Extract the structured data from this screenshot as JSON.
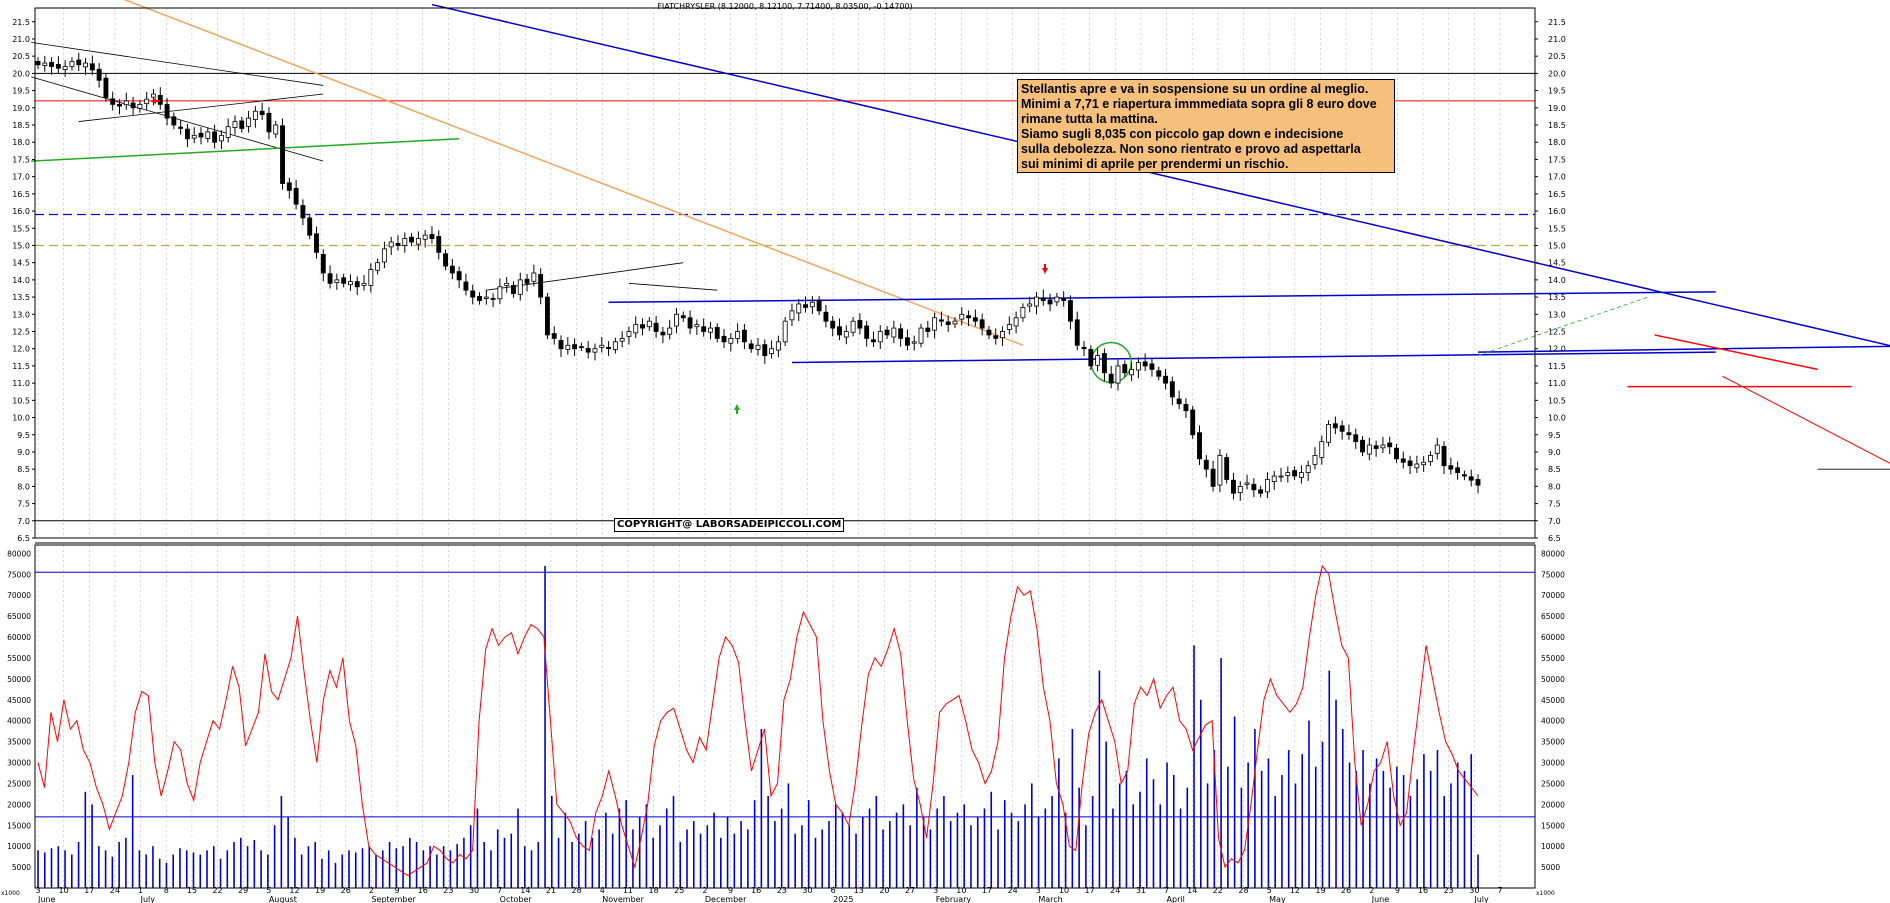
{
  "chart_title": "FIATCHRYSLER (8.12000, 8.12100, 7.71400, 8.03500, -0.14700)",
  "annotation": {
    "lines": [
      "Stellantis apre e va in sospensione su un ordine al meglio.",
      "Minimi a 7,71 e riapertura immmediata sopra gli 8 euro dove",
      "rimane tutta la mattina.",
      "Siamo sugli 8,035 con piccolo gap down e indecisione",
      "sulla debolezza. Non sono rientrato e provo ad aspettarla",
      "sui minimi di aprile per prendermi un rischio."
    ]
  },
  "copyright": "COPYRIGHT@ LABORSADEIPICCOLI.COM",
  "colors": {
    "candle_up": "#ffffff",
    "candle_down": "#000000",
    "volume": "#0000cc",
    "volume_avg": "#ff0000",
    "trend_blue": "#0000cc",
    "trend_orange": "#f4a460",
    "trend_green": "#22aa22",
    "level_red": "#ff0000",
    "level_dash_blue": "#0000cc",
    "level_dash_olive": "#b0b040"
  },
  "chart_data": [
    {
      "type": "candlestick",
      "price_ticks": [
        "7.0",
        "7.5",
        "8.0",
        "8.5",
        "9.0",
        "9.5",
        "10.0",
        "10.5",
        "11.0",
        "11.5",
        "12.0",
        "12.5",
        "13.0",
        "13.5",
        "14.0",
        "14.5",
        "15.0",
        "15.5",
        "16.0",
        "16.5",
        "17.0",
        "17.5",
        "18.0",
        "18.5",
        "19.0",
        "19.5",
        "20.0",
        "20.5",
        "21.0",
        "21.5"
      ],
      "extra_tick": "6.5",
      "ylim": [
        6.5,
        21.9
      ],
      "horizontal_levels": [
        {
          "value": 20.0,
          "style": "solid",
          "color": "#000000"
        },
        {
          "value": 19.2,
          "style": "solid",
          "color": "#ff0000"
        },
        {
          "value": 15.9,
          "style": "dashed",
          "color": "#0000cc"
        },
        {
          "value": 15.0,
          "style": "dashed",
          "color": "#b0b040"
        },
        {
          "value": 7.0,
          "style": "solid",
          "color": "#000000"
        }
      ],
      "last_close": 8.035,
      "last_high": 8.121,
      "last_low": 7.714,
      "last_open": 8.12,
      "change": -0.147,
      "x_day_labels": [
        "3",
        "10",
        "17",
        "24",
        "1",
        "8",
        "15",
        "22",
        "29",
        "5",
        "12",
        "19",
        "26",
        "2",
        "9",
        "16",
        "23",
        "30",
        "7",
        "14",
        "21",
        "28",
        "4",
        "11",
        "18",
        "25",
        "2",
        "9",
        "16",
        "23",
        "30",
        "6",
        "13",
        "20",
        "27",
        "3",
        "10",
        "17",
        "24",
        "3",
        "10",
        "17",
        "24",
        "31",
        "7",
        "14",
        "22",
        "28",
        "5",
        "12",
        "19",
        "26",
        "2",
        "9",
        "16",
        "23",
        "30",
        "7"
      ],
      "x_month_labels": [
        "June",
        "July",
        "August",
        "September",
        "October",
        "November",
        "December",
        "2025",
        "February",
        "March",
        "April",
        "May",
        "June",
        "July"
      ],
      "close_series": [
        20.25,
        20.3,
        20.2,
        20.15,
        20.2,
        20.35,
        20.25,
        20.3,
        20.1,
        19.8,
        19.3,
        19.1,
        19.05,
        19.2,
        19.0,
        19.1,
        19.25,
        19.4,
        19.1,
        18.7,
        18.5,
        18.4,
        18.1,
        18.2,
        18.15,
        18.3,
        18.0,
        18.2,
        18.45,
        18.6,
        18.4,
        18.7,
        18.9,
        18.8,
        18.3,
        18.5,
        16.8,
        16.6,
        16.2,
        15.8,
        15.3,
        14.8,
        14.2,
        13.9,
        14.0,
        13.9,
        13.95,
        13.8,
        13.9,
        14.3,
        14.5,
        14.9,
        15.1,
        15.0,
        15.2,
        15.1,
        15.2,
        15.3,
        15.2,
        14.8,
        14.4,
        14.2,
        14.0,
        13.7,
        13.5,
        13.4,
        13.5,
        13.45,
        13.8,
        13.9,
        13.6,
        14.0,
        13.9,
        14.2,
        13.5,
        12.4,
        12.3,
        12.0,
        12.1,
        12.0,
        12.05,
        11.9,
        12.0,
        12.1,
        12.0,
        12.2,
        12.3,
        12.5,
        12.7,
        12.6,
        12.8,
        12.5,
        12.4,
        12.6,
        13.0,
        12.9,
        12.6,
        12.7,
        12.5,
        12.6,
        12.3,
        12.2,
        12.3,
        12.5,
        12.2,
        12.0,
        12.1,
        11.8,
        12.0,
        12.2,
        12.8,
        13.1,
        13.3,
        13.2,
        13.35,
        13.1,
        12.8,
        12.6,
        12.4,
        12.5,
        12.8,
        12.6,
        12.3,
        12.2,
        12.5,
        12.4,
        12.6,
        12.3,
        12.1,
        12.2,
        12.6,
        12.5,
        12.9,
        12.8,
        12.7,
        12.8,
        13.0,
        12.9,
        12.8,
        12.6,
        12.4,
        12.3,
        12.5,
        12.7,
        12.9,
        13.2,
        13.3,
        13.5,
        13.4,
        13.3,
        13.5,
        13.4,
        12.8,
        12.1,
        12.0,
        11.5,
        11.8,
        11.3,
        11.0,
        11.5,
        11.3,
        11.4,
        11.6,
        11.5,
        11.4,
        11.2,
        11.0,
        10.6,
        10.4,
        10.2,
        9.5,
        8.8,
        8.5,
        8.0,
        8.9,
        8.2,
        7.8,
        8.0,
        8.1,
        7.9,
        7.8,
        8.2,
        8.3,
        8.3,
        8.4,
        8.3,
        8.4,
        8.6,
        8.9,
        9.3,
        9.8,
        9.7,
        9.6,
        9.5,
        9.3,
        9.0,
        9.2,
        9.1,
        9.2,
        9.15,
        8.8,
        8.7,
        8.6,
        8.65,
        8.7,
        8.9,
        9.2,
        8.6,
        8.5,
        8.4,
        8.3,
        8.18,
        8.035
      ],
      "volume_ticks": [
        "5000",
        "10000",
        "15000",
        "20000",
        "25000",
        "30000",
        "35000",
        "40000",
        "45000",
        "50000",
        "55000",
        "60000",
        "65000",
        "70000",
        "75000",
        "80000"
      ],
      "volume_unit_label": "x1000",
      "volume_reference_levels": [
        17000,
        75500
      ],
      "volume_series": [
        9000,
        8500,
        9500,
        10000,
        9000,
        8000,
        11000,
        23000,
        20000,
        10000,
        9000,
        7500,
        11000,
        12000,
        27000,
        9000,
        8000,
        10000,
        7000,
        6000,
        8000,
        9500,
        9000,
        8500,
        8000,
        9000,
        10000,
        7000,
        9000,
        11000,
        12000,
        10000,
        11500,
        9000,
        8000,
        15000,
        22000,
        17000,
        12000,
        8000,
        10000,
        11000,
        7000,
        9000,
        6000,
        8000,
        9000,
        8500,
        9500,
        10000,
        8000,
        9000,
        11000,
        9500,
        10000,
        12000,
        11000,
        9000,
        10000,
        8000,
        10000,
        9000,
        10500,
        12000,
        15000,
        19000,
        11000,
        9000,
        14000,
        12000,
        13000,
        19000,
        10000,
        9000,
        11000,
        77000,
        22000,
        12000,
        18000,
        11000,
        13000,
        16000,
        12000,
        14000,
        18000,
        13000,
        19000,
        21000,
        14000,
        17000,
        20000,
        12000,
        15000,
        19000,
        22000,
        11000,
        14000,
        16000,
        13000,
        15000,
        18000,
        12000,
        17000,
        13000,
        16000,
        14000,
        21000,
        38000,
        22000,
        16000,
        19000,
        25000,
        13000,
        15000,
        21000,
        12000,
        14000,
        16000,
        20000,
        18000,
        15000,
        13000,
        17000,
        19000,
        22000,
        14000,
        16000,
        18000,
        20000,
        15000,
        24000,
        17000,
        14000,
        19000,
        22000,
        16000,
        18000,
        20000,
        15000,
        17000,
        19000,
        23000,
        14000,
        21000,
        18000,
        16000,
        20000,
        25000,
        17000,
        19000,
        22000,
        31000,
        18000,
        38000,
        24000,
        15000,
        22000,
        52000,
        35000,
        19000,
        25000,
        28000,
        20000,
        23000,
        31000,
        26000,
        20000,
        30000,
        27000,
        19000,
        24000,
        58000,
        45000,
        25000,
        33000,
        55000,
        29000,
        41000,
        24000,
        30000,
        38000,
        28000,
        31000,
        22000,
        27000,
        33000,
        25000,
        32000,
        40000,
        29000,
        35000,
        52000,
        45000,
        38000,
        30000,
        28000,
        33000,
        25000,
        31000,
        28000,
        24000,
        29000,
        27000,
        22000,
        26000,
        32000,
        28000,
        33000,
        22000,
        25000,
        30000,
        28000,
        32000,
        8000
      ],
      "volume_average_series": [
        30000,
        24000,
        42000,
        35000,
        45000,
        38000,
        40000,
        33000,
        30000,
        24000,
        20000,
        14000,
        18000,
        22000,
        30000,
        42000,
        47000,
        46000,
        30000,
        22000,
        28000,
        35000,
        33000,
        25000,
        21000,
        30000,
        35000,
        40000,
        38000,
        45000,
        53000,
        48000,
        34000,
        38000,
        42000,
        56000,
        47000,
        45000,
        50000,
        55000,
        65000,
        52000,
        40000,
        30000,
        45000,
        52000,
        48000,
        55000,
        40000,
        34000,
        20000,
        10000,
        8000,
        7000,
        6000,
        5000,
        4000,
        3000,
        4000,
        5000,
        6000,
        10000,
        9000,
        7000,
        6000,
        8000,
        7000,
        9000,
        40000,
        57000,
        62000,
        58000,
        60000,
        61000,
        56000,
        60000,
        63000,
        62000,
        60000,
        40000,
        20000,
        18000,
        16000,
        12000,
        10000,
        9000,
        18000,
        22000,
        28000,
        22000,
        15000,
        10000,
        5000,
        12000,
        20000,
        34000,
        40000,
        42000,
        43000,
        38000,
        33000,
        30000,
        36000,
        33000,
        44000,
        55000,
        60000,
        58000,
        54000,
        40000,
        28000,
        33000,
        38000,
        22000,
        25000,
        45000,
        50000,
        60000,
        66000,
        63000,
        60000,
        40000,
        28000,
        20000,
        18000,
        15000,
        25000,
        39000,
        51000,
        55000,
        53000,
        57000,
        62000,
        56000,
        40000,
        26000,
        20000,
        12000,
        25000,
        42000,
        44000,
        45000,
        46000,
        40000,
        33000,
        30000,
        25000,
        28000,
        35000,
        55000,
        65000,
        72000,
        70000,
        71000,
        62000,
        48000,
        40000,
        25000,
        20000,
        10000,
        9000,
        25000,
        37000,
        42000,
        45000,
        40000,
        35000,
        25000,
        28000,
        44000,
        48000,
        46000,
        50000,
        43000,
        46000,
        48000,
        40000,
        38000,
        33000,
        36000,
        39000,
        40000,
        12000,
        5000,
        7000,
        6000,
        9000,
        20000,
        33000,
        45000,
        50000,
        46000,
        44000,
        42000,
        44000,
        48000,
        60000,
        70000,
        77000,
        75000,
        66000,
        58000,
        55000,
        30000,
        15000,
        20000,
        28000,
        30000,
        35000,
        22000,
        15000,
        18000,
        32000,
        45000,
        58000,
        50000,
        42000,
        35000,
        32000,
        28000,
        26000,
        24000,
        22000
      ]
    }
  ]
}
